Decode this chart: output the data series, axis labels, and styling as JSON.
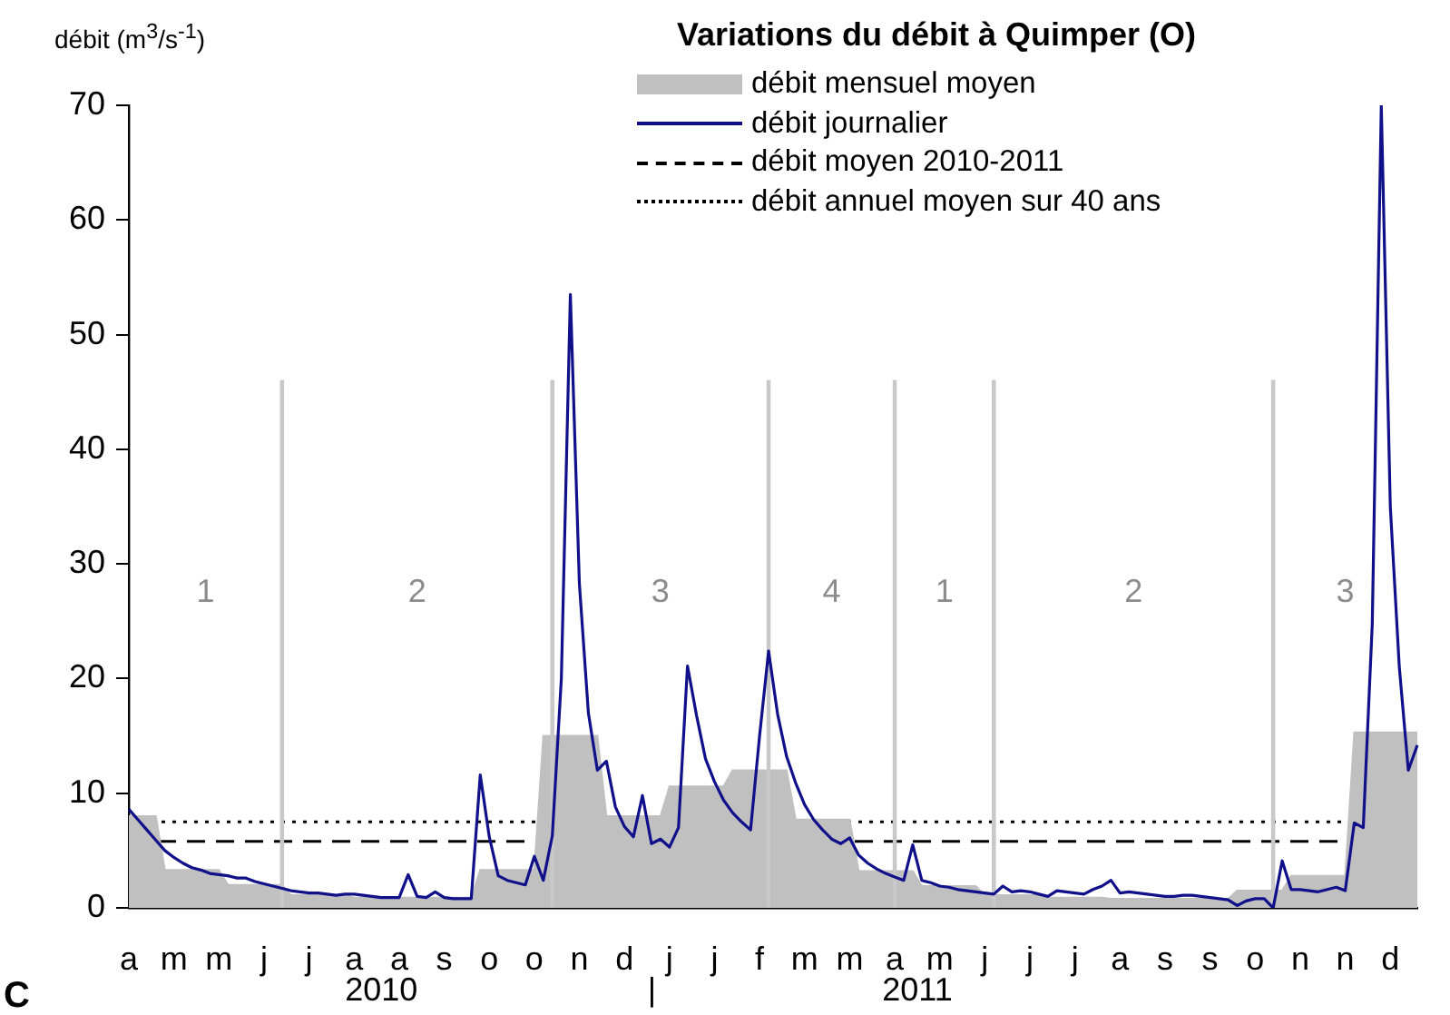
{
  "chart_data": {
    "type": "line",
    "title": "Variations du débit à Quimper (O)",
    "ylabel": "débit (m$^{3}$/s$^{-1}$)",
    "categories": [
      "a",
      null,
      null,
      null,
      null,
      "m",
      null,
      null,
      null,
      null,
      "m",
      null,
      null,
      null,
      null,
      "j",
      null,
      null,
      null,
      null,
      "j",
      null,
      null,
      null,
      null,
      "a",
      null,
      null,
      null,
      null,
      "a",
      null,
      null,
      null,
      null,
      "s",
      null,
      null,
      null,
      null,
      "o",
      null,
      null,
      null,
      null,
      "o",
      null,
      null,
      null,
      null,
      "n",
      null,
      null,
      null,
      null,
      "d",
      null,
      null,
      null,
      null,
      "j",
      null,
      null,
      null,
      null,
      "j",
      null,
      null,
      null,
      null,
      "f",
      null,
      null,
      null,
      null,
      "m",
      null,
      null,
      null,
      null,
      "m",
      null,
      null,
      null,
      null,
      "a",
      null,
      null,
      null,
      null,
      "m",
      null,
      null,
      null,
      null,
      "j",
      null,
      null,
      null,
      null,
      "j",
      null,
      null,
      null,
      null,
      "j",
      null,
      null,
      null,
      null,
      "a",
      null,
      null,
      null,
      null,
      "s",
      null,
      null,
      null,
      null,
      "s",
      null,
      null,
      null,
      null,
      "o",
      null,
      null,
      null,
      null,
      "n",
      null,
      null,
      null,
      null,
      "n",
      null,
      null,
      null,
      null,
      "d",
      null,
      null,
      null
    ],
    "ylim": [
      0,
      70
    ],
    "yticks": [
      0,
      10,
      20,
      30,
      40,
      50,
      60,
      70
    ],
    "marker": "none",
    "legend": "top",
    "series": [
      {
        "name": "débit mensuel moyen",
        "type": "area",
        "color": "#c0c0c0",
        "values": [
          8.0,
          8.0,
          8.0,
          8.0,
          3.3,
          3.3,
          3.3,
          3.3,
          3.3,
          3.3,
          3.3,
          2.0,
          2.0,
          2.0,
          2.0,
          2.0,
          2.0,
          2.0,
          1.1,
          1.1,
          1.1,
          1.1,
          1.1,
          1.1,
          1.1,
          0.9,
          0.9,
          0.9,
          0.9,
          0.9,
          0.9,
          0.9,
          0.9,
          0.9,
          0.9,
          0.9,
          0.9,
          0.9,
          0.9,
          3.3,
          3.3,
          3.3,
          3.3,
          3.3,
          3.3,
          3.3,
          15.0,
          15.0,
          15.0,
          15.0,
          15.0,
          15.0,
          15.0,
          8.0,
          8.0,
          8.0,
          8.0,
          8.0,
          8.0,
          8.0,
          10.6,
          10.6,
          10.6,
          10.6,
          10.6,
          10.6,
          10.6,
          12.0,
          12.0,
          12.0,
          12.0,
          12.0,
          12.0,
          12.0,
          7.7,
          7.7,
          7.7,
          7.7,
          7.7,
          7.7,
          7.7,
          3.2,
          3.2,
          3.2,
          3.2,
          3.2,
          3.2,
          3.2,
          1.9,
          1.9,
          1.9,
          1.9,
          1.9,
          1.9,
          1.9,
          1.1,
          1.1,
          1.1,
          1.1,
          1.1,
          1.1,
          1.1,
          0.9,
          0.9,
          0.9,
          0.9,
          0.9,
          0.9,
          0.9,
          0.8,
          0.8,
          0.8,
          0.8,
          0.8,
          0.8,
          0.8,
          0.8,
          0.8,
          0.8,
          0.8,
          0.8,
          0.8,
          0.8,
          1.5,
          1.5,
          1.5,
          1.5,
          1.5,
          1.5,
          2.8,
          2.8,
          2.8,
          2.8,
          2.8,
          2.8,
          2.8,
          15.3,
          15.3,
          15.3,
          15.3,
          15.3,
          15.3,
          15.3,
          15.3
        ]
      },
      {
        "name": "débit journalier",
        "color": "#10108a",
        "line_style": "solid",
        "values": [
          8.6,
          7.7,
          6.8,
          5.9,
          5.0,
          4.4,
          3.9,
          3.5,
          3.3,
          3.0,
          2.9,
          2.8,
          2.6,
          2.6,
          2.3,
          2.1,
          1.9,
          1.7,
          1.5,
          1.4,
          1.3,
          1.3,
          1.2,
          1.1,
          1.2,
          1.2,
          1.1,
          1.0,
          0.9,
          0.9,
          0.9,
          2.9,
          1.0,
          0.9,
          1.4,
          0.9,
          0.8,
          0.8,
          0.8,
          11.6,
          6.2,
          2.8,
          2.4,
          2.2,
          2.0,
          4.5,
          2.4,
          6.3,
          20,
          53.5,
          28.3,
          17,
          12,
          12.8,
          8.8,
          7.1,
          6.2,
          9.8,
          5.6,
          6.0,
          5.3,
          7.0,
          21.1,
          16.8,
          13,
          11,
          9.4,
          8.3,
          7.5,
          6.8,
          15,
          22.4,
          16.9,
          13.2,
          10.9,
          9.0,
          7.7,
          6.8,
          6.0,
          5.6,
          6.1,
          4.6,
          3.9,
          3.4,
          3.0,
          2.7,
          2.4,
          5.5,
          2.4,
          2.2,
          1.9,
          1.8,
          1.6,
          1.5,
          1.4,
          1.3,
          1.2,
          1.9,
          1.4,
          1.5,
          1.4,
          1.2,
          1.0,
          1.5,
          1.4,
          1.3,
          1.2,
          1.6,
          1.9,
          2.4,
          1.3,
          1.4,
          1.3,
          1.2,
          1.1,
          1.0,
          1.0,
          1.1,
          1.1,
          1.0,
          0.9,
          0.8,
          0.7,
          0.2,
          0.6,
          0.8,
          0.8,
          0.0,
          4.1,
          1.6,
          1.6,
          1.5,
          1.4,
          1.6,
          1.8,
          1.5,
          7.4,
          7.0,
          24.8,
          70,
          35,
          21,
          12,
          14.2
        ]
      },
      {
        "type": "bar",
        "color": "#c8c8c8",
        "values": [
          null,
          null,
          null,
          null,
          null,
          null,
          null,
          null,
          null,
          null,
          null,
          null,
          null,
          null,
          null,
          null,
          null,
          46,
          null,
          null,
          null,
          null,
          null,
          null,
          null,
          null,
          null,
          null,
          null,
          null,
          null,
          null,
          null,
          null,
          null,
          null,
          null,
          null,
          null,
          null,
          null,
          null,
          null,
          null,
          null,
          null,
          null,
          46,
          null,
          null,
          null,
          null,
          null,
          null,
          null,
          null,
          null,
          null,
          null,
          null,
          null,
          null,
          null,
          null,
          null,
          null,
          null,
          null,
          null,
          null,
          null,
          46,
          null,
          null,
          null,
          null,
          null,
          null,
          null,
          null,
          null,
          null,
          null,
          null,
          null,
          46,
          null,
          null,
          null,
          null,
          null,
          null,
          null,
          null,
          null,
          null,
          46,
          null,
          null,
          null,
          null,
          null,
          null,
          null,
          null,
          null,
          null,
          null,
          null,
          null,
          null,
          null,
          null,
          null,
          null,
          null,
          null,
          null,
          null,
          null,
          null,
          null,
          null,
          null,
          null,
          null,
          null,
          46,
          null,
          null,
          null,
          null,
          null,
          null,
          null,
          null,
          null,
          null,
          null,
          null,
          null,
          null,
          null,
          null
        ]
      }
    ],
    "ref_lines": [
      {
        "axis": "y",
        "value": 5.8,
        "label": "débit moyen 2010-2011",
        "color": "#000000",
        "line_style": "dashed"
      },
      {
        "axis": "y",
        "value": 7.5,
        "label": "débit annuel moyen sur 40 ans",
        "color": "#000000",
        "line_style": "dotted"
      }
    ],
    "annotations": [
      "1",
      "2",
      "3",
      "4",
      "1",
      "2",
      "3",
      "2010",
      "|",
      "2011",
      "C"
    ]
  }
}
